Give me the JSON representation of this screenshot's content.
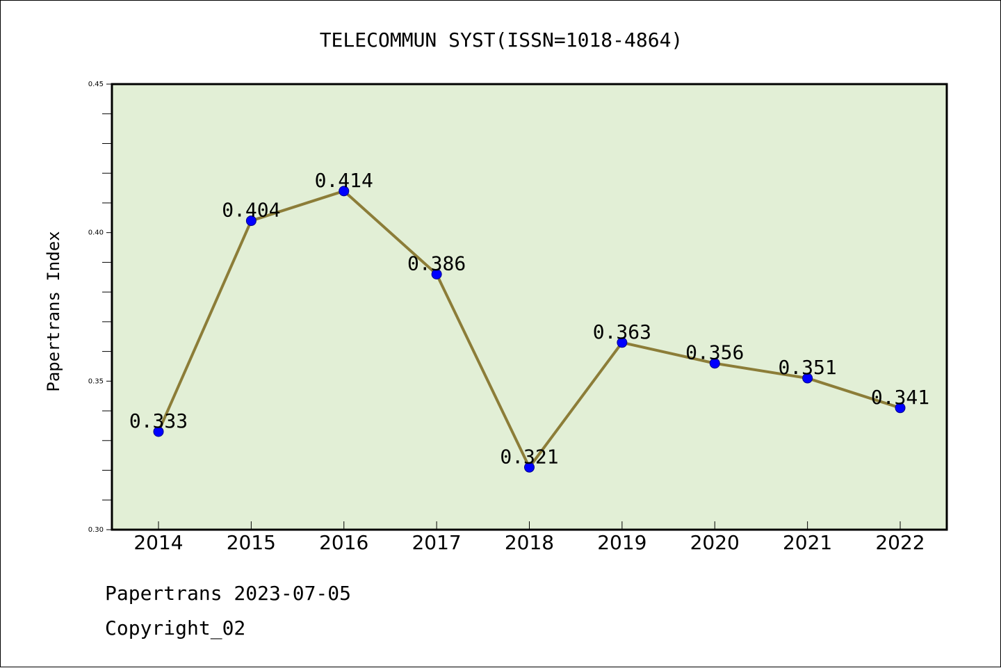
{
  "footer": {
    "source": "Papertrans 2023-07-05",
    "copyright": "Copyright_02"
  },
  "colors": {
    "plot_background": "#e2efd6",
    "line": "#8c7d38",
    "marker": "#0000ff",
    "frame": "#000000"
  },
  "chart_data": {
    "type": "line",
    "title": "TELECOMMUN SYST(ISSN=1018-4864)",
    "xlabel": "",
    "ylabel": "Papertrans Index",
    "categories": [
      "2014",
      "2015",
      "2016",
      "2017",
      "2018",
      "2019",
      "2020",
      "2021",
      "2022"
    ],
    "series": [
      {
        "values": [
          0.333,
          0.404,
          0.414,
          0.386,
          0.321,
          0.363,
          0.356,
          0.351,
          0.341
        ],
        "data_labels": [
          "0.333",
          "0.404",
          "0.414",
          "0.386",
          "0.321",
          "0.363",
          "0.356",
          "0.351",
          "0.341"
        ]
      }
    ],
    "ylim": [
      0.3,
      0.45
    ],
    "yticks": [
      "0.30",
      "0.35",
      "0.40",
      "0.45"
    ],
    "grid": false,
    "legend": "none"
  }
}
